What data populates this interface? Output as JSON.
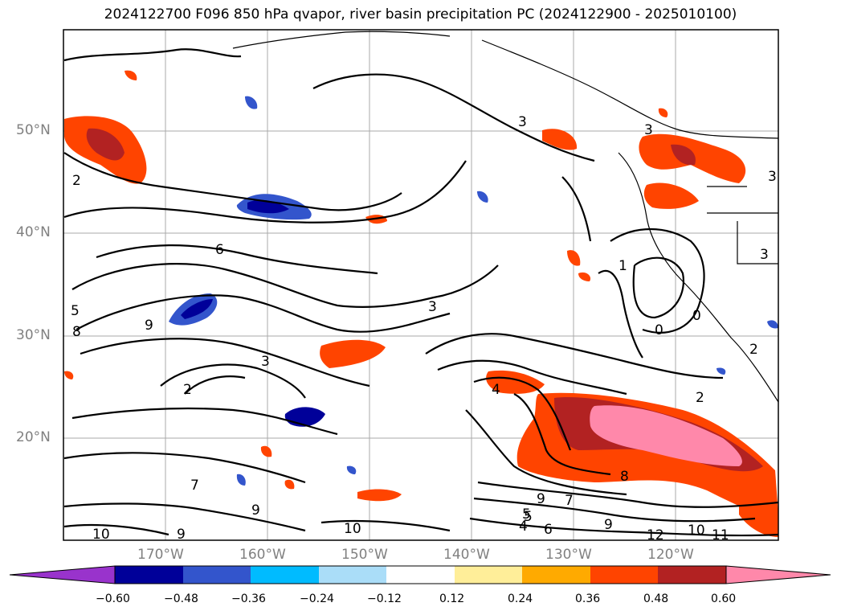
{
  "title": "2024122700 F096 850 hPa qvapor, river basin precipitation PC (2024122900 - 2025010100)",
  "map": {
    "lat_ticks": [
      "50°N",
      "40°N",
      "30°N",
      "20°N"
    ],
    "lon_ticks": [
      "170°W",
      "160°W",
      "150°W",
      "140°W",
      "130°W",
      "120°W"
    ],
    "contour_labels": [
      "2",
      "6",
      "5",
      "8",
      "9",
      "3",
      "3",
      "4",
      "2",
      "1",
      "0",
      "3",
      "3",
      "3",
      "2",
      "3",
      "7",
      "5",
      "9",
      "9",
      "10",
      "10",
      "9",
      "4",
      "6",
      "5",
      "7",
      "8",
      "9",
      "12",
      "10",
      "11",
      "0",
      "2"
    ]
  },
  "colorbar": {
    "ticks": [
      "−0.60",
      "−0.48",
      "−0.36",
      "−0.24",
      "−0.12",
      "0.12",
      "0.24",
      "0.36",
      "0.48",
      "0.60"
    ],
    "colors": [
      "#9933cc",
      "#000099",
      "#3355cc",
      "#00bbff",
      "#aaddf8",
      "#ffffff",
      "#ffee99",
      "#ffaa00",
      "#ff4400",
      "#b22222",
      "#ff88aa"
    ]
  }
}
